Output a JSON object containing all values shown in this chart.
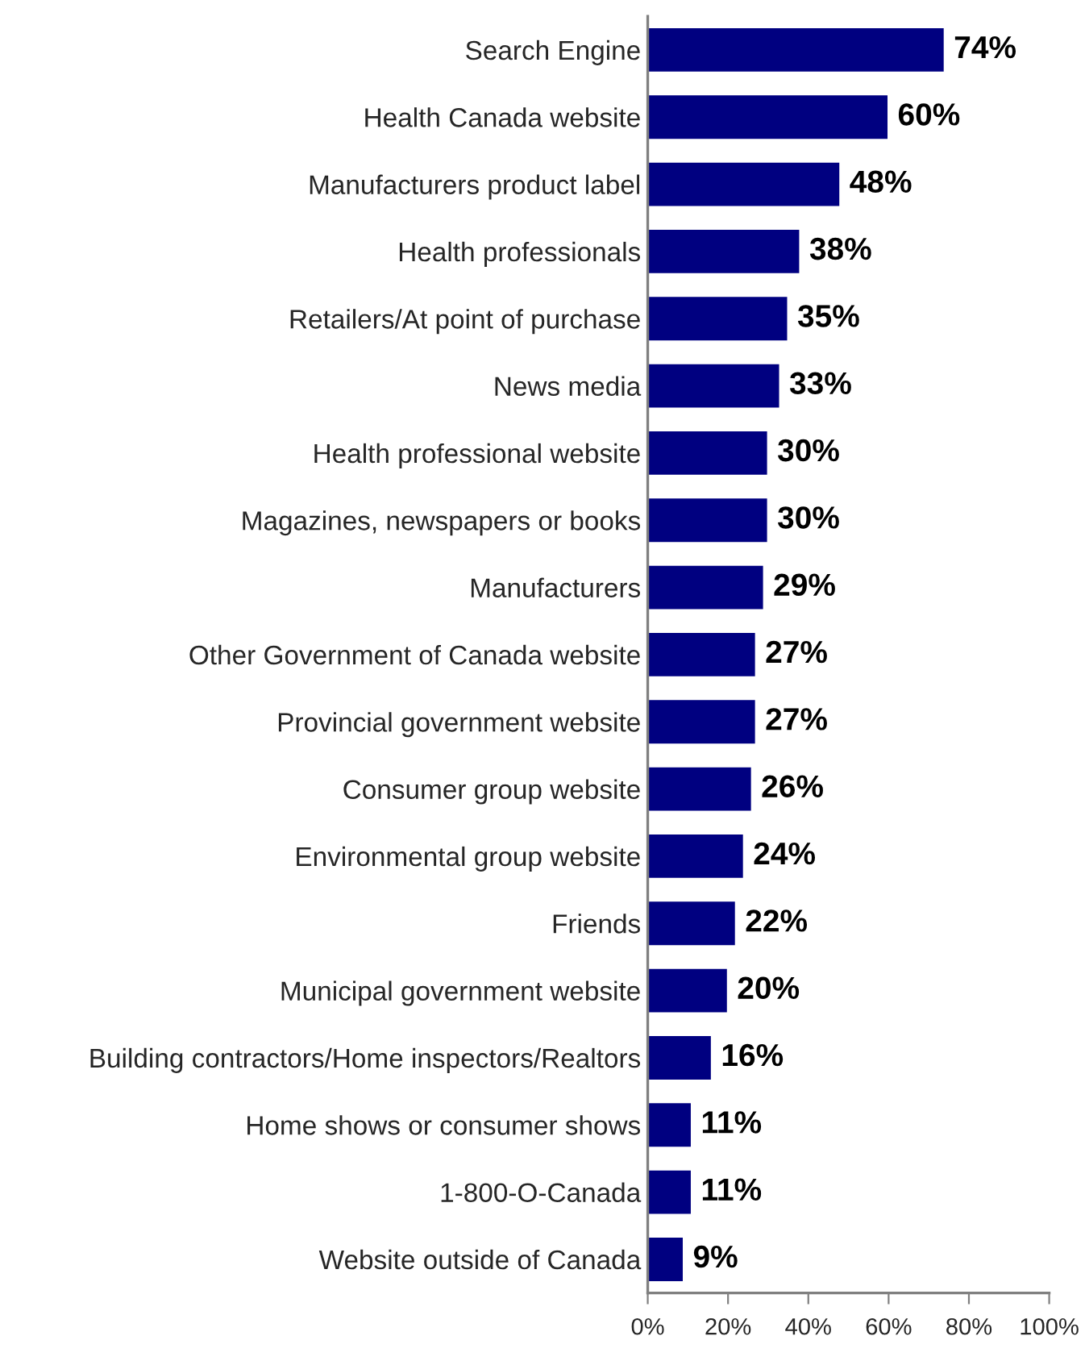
{
  "chart_data": {
    "type": "bar",
    "orientation": "horizontal",
    "categories": [
      "Search Engine",
      "Health Canada website",
      "Manufacturers product label",
      "Health professionals",
      "Retailers/At point of purchase",
      "News media",
      "Health professional website",
      "Magazines, newspapers or books",
      "Manufacturers",
      "Other Government of Canada website",
      "Provincial government website",
      "Consumer group website",
      "Environmental group website",
      "Friends",
      "Municipal government website",
      "Building contractors/Home inspectors/Realtors",
      "Home shows or consumer shows",
      "1-800-O-Canada",
      "Website outside of Canada"
    ],
    "values": [
      74,
      60,
      48,
      38,
      35,
      33,
      30,
      30,
      29,
      27,
      27,
      26,
      24,
      22,
      20,
      16,
      11,
      11,
      9
    ],
    "value_labels": [
      "74%",
      "60%",
      "48%",
      "38%",
      "35%",
      "33%",
      "30%",
      "30%",
      "29%",
      "27%",
      "27%",
      "26%",
      "24%",
      "22%",
      "20%",
      "16%",
      "11%",
      "11%",
      "9%"
    ],
    "color": "#000080",
    "xlim": [
      0,
      100
    ],
    "xticks": [
      {
        "value": 0,
        "label": "0%"
      },
      {
        "value": 20,
        "label": "20%"
      },
      {
        "value": 40,
        "label": "40%"
      },
      {
        "value": 60,
        "label": "60%"
      },
      {
        "value": 80,
        "label": "80%"
      },
      {
        "value": 100,
        "label": "100%"
      }
    ],
    "grid": false,
    "legend": false
  }
}
